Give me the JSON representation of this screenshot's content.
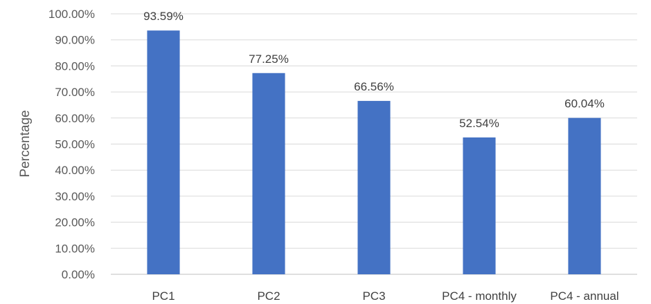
{
  "chart_data": {
    "type": "bar",
    "categories": [
      "PC1",
      "PC2",
      "PC3",
      "PC4 - monthly",
      "PC4 - annual"
    ],
    "values": [
      93.59,
      77.25,
      66.56,
      52.54,
      60.04
    ],
    "data_labels": [
      "93.59%",
      "77.25%",
      "66.56%",
      "52.54%",
      "60.04%"
    ],
    "title": "",
    "xlabel": "",
    "ylabel": "Percentage",
    "ylim": [
      0,
      100
    ],
    "yticks": [
      0,
      10,
      20,
      30,
      40,
      50,
      60,
      70,
      80,
      90,
      100
    ],
    "ytick_labels": [
      "0.00%",
      "10.00%",
      "20.00%",
      "30.00%",
      "40.00%",
      "50.00%",
      "60.00%",
      "70.00%",
      "80.00%",
      "90.00%",
      "100.00%"
    ],
    "grid": true,
    "legend": "none",
    "bar_color": "#4472C4"
  }
}
